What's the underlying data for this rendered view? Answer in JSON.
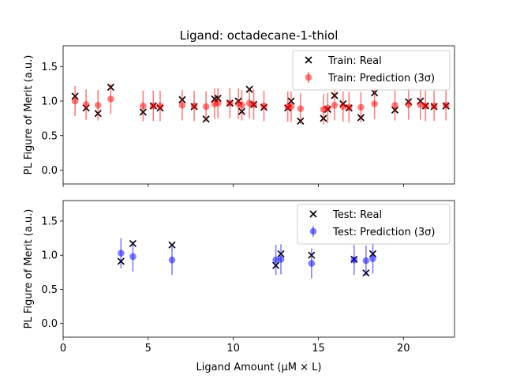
{
  "figure": {
    "title": "Ligand: octadecane-1-thiol",
    "xlabel": "Ligand Amount (μM × L)",
    "ylabel": "PL Figure of Merit (a.u.)"
  },
  "chart_data": [
    {
      "type": "scatter",
      "panel": "top",
      "title": "Ligand: octadecane-1-thiol",
      "ylabel": "PL Figure of Merit (a.u.)",
      "xlim": [
        0,
        23
      ],
      "ylim": [
        -0.2,
        1.8
      ],
      "xticks": [
        "0",
        "5",
        "10",
        "15",
        "20"
      ],
      "yticks": [
        "0.0",
        "0.5",
        "1.0",
        "1.5"
      ],
      "show_xtick_labels": false,
      "legend_placement": "upper-right",
      "series": [
        {
          "name": "Train: Real",
          "marker": "x",
          "color": "#000000",
          "points": [
            [
              0.7,
              1.07
            ],
            [
              1.35,
              0.9
            ],
            [
              2.05,
              0.82
            ],
            [
              2.8,
              1.2
            ],
            [
              4.7,
              0.84
            ],
            [
              5.3,
              0.93
            ],
            [
              5.7,
              0.9
            ],
            [
              7.0,
              1.02
            ],
            [
              7.7,
              0.92
            ],
            [
              8.4,
              0.74
            ],
            [
              8.9,
              1.03
            ],
            [
              9.1,
              1.04
            ],
            [
              9.8,
              0.97
            ],
            [
              10.3,
              1.0
            ],
            [
              10.5,
              0.85
            ],
            [
              10.95,
              1.17
            ],
            [
              11.2,
              0.95
            ],
            [
              11.8,
              0.91
            ],
            [
              13.2,
              0.9
            ],
            [
              13.4,
              1.0
            ],
            [
              13.95,
              0.71
            ],
            [
              15.3,
              0.75
            ],
            [
              15.55,
              0.88
            ],
            [
              15.95,
              1.08
            ],
            [
              16.45,
              0.96
            ],
            [
              16.8,
              0.9
            ],
            [
              17.5,
              0.76
            ],
            [
              18.3,
              1.12
            ],
            [
              19.5,
              0.87
            ],
            [
              20.3,
              0.99
            ],
            [
              21.0,
              1.0
            ],
            [
              21.3,
              0.93
            ],
            [
              21.8,
              0.92
            ],
            [
              22.5,
              0.93
            ]
          ]
        },
        {
          "name": "Train: Prediction (3σ)",
          "marker": "o",
          "color": "#ff0000",
          "err": 0.22,
          "points": [
            [
              0.7,
              1.0
            ],
            [
              1.35,
              0.95
            ],
            [
              2.05,
              0.94
            ],
            [
              2.8,
              1.03
            ],
            [
              4.7,
              0.93
            ],
            [
              5.3,
              0.93
            ],
            [
              5.7,
              0.93
            ],
            [
              7.0,
              0.94
            ],
            [
              7.7,
              0.93
            ],
            [
              8.4,
              0.92
            ],
            [
              8.9,
              0.96
            ],
            [
              9.1,
              0.97
            ],
            [
              9.8,
              0.97
            ],
            [
              10.3,
              0.96
            ],
            [
              10.5,
              0.94
            ],
            [
              10.95,
              0.97
            ],
            [
              11.2,
              0.95
            ],
            [
              11.8,
              0.93
            ],
            [
              13.2,
              0.92
            ],
            [
              13.4,
              0.92
            ],
            [
              13.95,
              0.89
            ],
            [
              15.3,
              0.88
            ],
            [
              15.55,
              0.9
            ],
            [
              15.95,
              0.94
            ],
            [
              16.45,
              0.92
            ],
            [
              16.8,
              0.91
            ],
            [
              17.5,
              0.91
            ],
            [
              18.3,
              0.96
            ],
            [
              19.5,
              0.94
            ],
            [
              20.3,
              0.95
            ],
            [
              21.0,
              0.95
            ],
            [
              21.3,
              0.93
            ],
            [
              21.8,
              0.93
            ],
            [
              22.5,
              0.94
            ]
          ]
        }
      ]
    },
    {
      "type": "scatter",
      "panel": "bottom",
      "ylabel": "PL Figure of Merit (a.u.)",
      "xlabel": "Ligand Amount (μM × L)",
      "xlim": [
        0,
        23
      ],
      "ylim": [
        -0.2,
        1.8
      ],
      "xticks": [
        "0",
        "5",
        "10",
        "15",
        "20"
      ],
      "yticks": [
        "0.0",
        "0.5",
        "1.0",
        "1.5"
      ],
      "show_xtick_labels": true,
      "legend_placement": "upper-right",
      "series": [
        {
          "name": "Test: Real",
          "marker": "x",
          "color": "#000000",
          "points": [
            [
              3.4,
              0.91
            ],
            [
              4.1,
              1.17
            ],
            [
              6.4,
              1.15
            ],
            [
              12.5,
              0.85
            ],
            [
              12.8,
              1.02
            ],
            [
              14.6,
              1.0
            ],
            [
              17.1,
              0.94
            ],
            [
              17.8,
              0.74
            ],
            [
              18.2,
              1.02
            ]
          ]
        },
        {
          "name": "Test: Prediction (3σ)",
          "marker": "o",
          "color": "#0000ff",
          "err": 0.22,
          "points": [
            [
              3.4,
              1.03
            ],
            [
              4.1,
              0.98
            ],
            [
              6.4,
              0.93
            ],
            [
              12.5,
              0.93
            ],
            [
              12.8,
              0.94
            ],
            [
              14.6,
              0.88
            ],
            [
              17.1,
              0.93
            ],
            [
              17.8,
              0.92
            ],
            [
              18.2,
              0.95
            ]
          ]
        }
      ]
    }
  ]
}
